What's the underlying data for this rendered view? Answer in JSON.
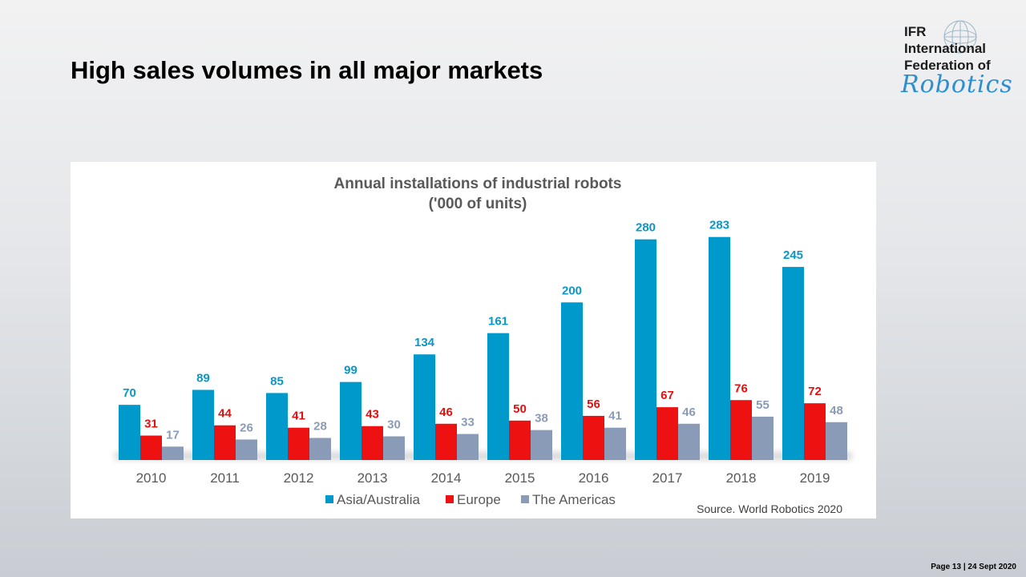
{
  "slide": {
    "title": "High sales volumes in all major markets",
    "footer": "Page 13 | 24 Sept 2020"
  },
  "logo": {
    "line1": "IFR",
    "line2": "International",
    "line3": "Federation of",
    "line4": "Robotics",
    "color": "#2d8fd0"
  },
  "chart_data": {
    "type": "bar",
    "title": "Annual installations of industrial robots",
    "subtitle": "('000 of units)",
    "categories": [
      "2010",
      "2011",
      "2012",
      "2013",
      "2014",
      "2015",
      "2016",
      "2017",
      "2018",
      "2019"
    ],
    "series": [
      {
        "name": "Asia/Australia",
        "color": "#0099cc",
        "label_color": "#0b96c8",
        "values": [
          70,
          89,
          85,
          99,
          134,
          161,
          200,
          280,
          283,
          245
        ]
      },
      {
        "name": "Europe",
        "color": "#ee1111",
        "label_color": "#e41010",
        "values": [
          31,
          44,
          41,
          43,
          46,
          50,
          56,
          67,
          76,
          72
        ]
      },
      {
        "name": "The Americas",
        "color": "#8a9bb7",
        "label_color": "#8a9bb7",
        "values": [
          17,
          26,
          28,
          30,
          33,
          38,
          41,
          46,
          55,
          48
        ]
      }
    ],
    "ylim": [
      0,
      300
    ],
    "grid": false,
    "legend": "bottom",
    "source": "Source. World Robotics 2020"
  }
}
